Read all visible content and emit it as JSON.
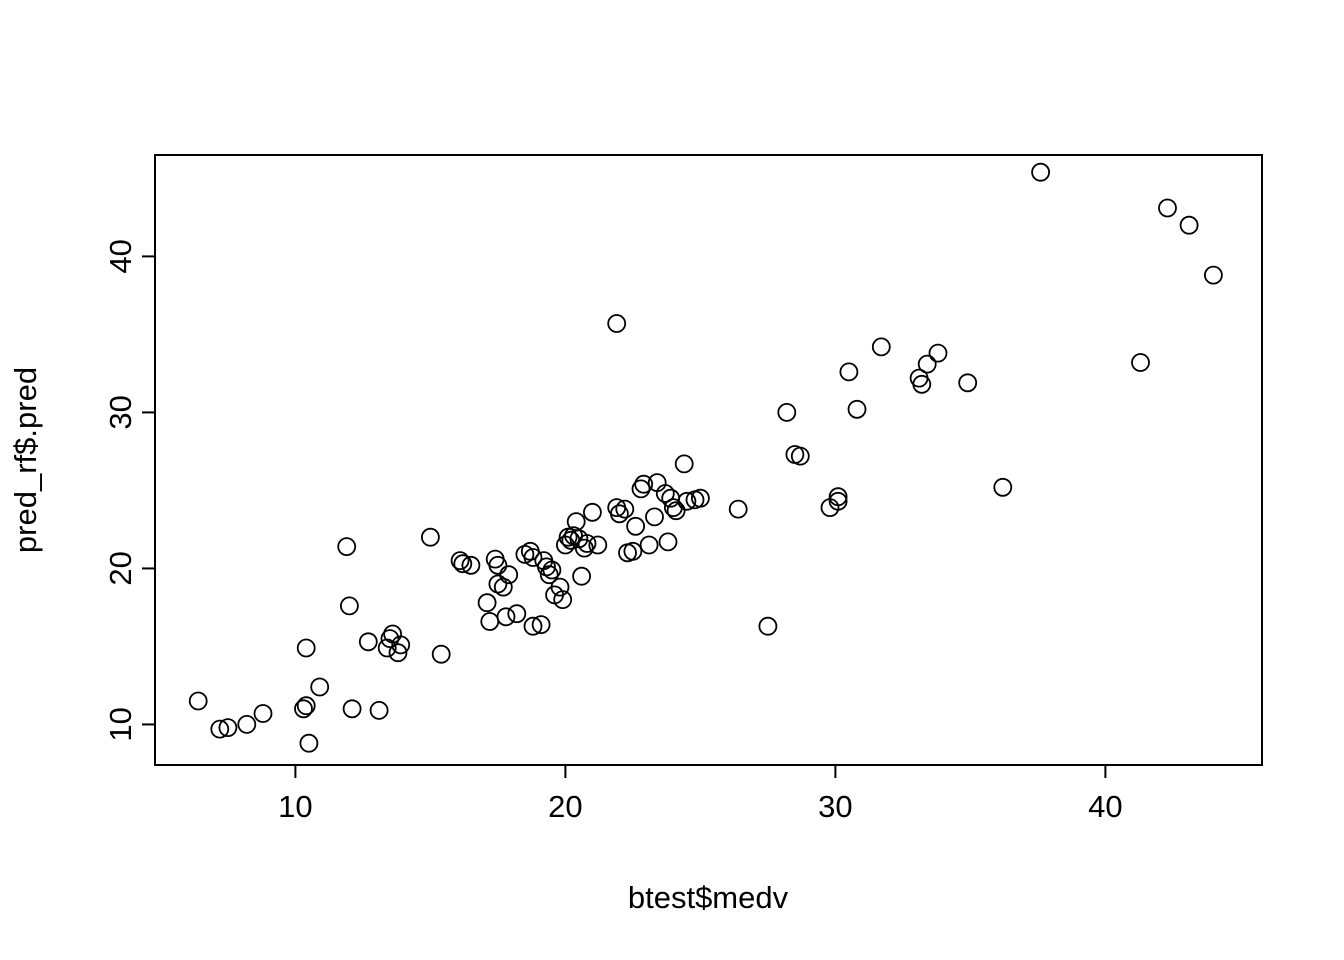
{
  "chart_data": {
    "type": "scatter",
    "title": "",
    "xlabel": "btest$medv",
    "ylabel": "pred_rf$.pred",
    "xlim": [
      4.8,
      45.8
    ],
    "ylim": [
      7.4,
      46.5
    ],
    "xticks": [
      10,
      20,
      30,
      40
    ],
    "yticks": [
      10,
      20,
      30,
      40
    ],
    "grid": false,
    "legend": "none",
    "marker": "open-circle",
    "marker_color": "#000000",
    "points": [
      [
        6.4,
        11.5
      ],
      [
        7.2,
        9.7
      ],
      [
        7.5,
        9.8
      ],
      [
        8.2,
        10.0
      ],
      [
        8.8,
        10.7
      ],
      [
        10.3,
        11.0
      ],
      [
        10.4,
        11.2
      ],
      [
        10.4,
        14.9
      ],
      [
        10.5,
        8.8
      ],
      [
        10.9,
        12.4
      ],
      [
        11.9,
        21.4
      ],
      [
        12.0,
        17.6
      ],
      [
        12.1,
        11.0
      ],
      [
        12.7,
        15.3
      ],
      [
        13.1,
        10.9
      ],
      [
        13.4,
        14.9
      ],
      [
        13.5,
        15.5
      ],
      [
        13.6,
        15.8
      ],
      [
        13.8,
        14.6
      ],
      [
        13.9,
        15.1
      ],
      [
        15.0,
        22.0
      ],
      [
        15.4,
        14.5
      ],
      [
        16.1,
        20.5
      ],
      [
        16.2,
        20.3
      ],
      [
        16.5,
        20.2
      ],
      [
        17.1,
        17.8
      ],
      [
        17.2,
        16.6
      ],
      [
        17.4,
        20.6
      ],
      [
        17.5,
        20.2
      ],
      [
        17.5,
        19.0
      ],
      [
        17.7,
        18.8
      ],
      [
        17.8,
        16.9
      ],
      [
        17.9,
        19.6
      ],
      [
        18.2,
        17.1
      ],
      [
        18.5,
        20.9
      ],
      [
        18.7,
        21.1
      ],
      [
        18.8,
        20.7
      ],
      [
        18.8,
        16.3
      ],
      [
        19.1,
        16.4
      ],
      [
        19.2,
        20.5
      ],
      [
        19.3,
        20.1
      ],
      [
        19.4,
        19.6
      ],
      [
        19.5,
        19.9
      ],
      [
        19.6,
        18.3
      ],
      [
        19.8,
        18.8
      ],
      [
        19.9,
        18.0
      ],
      [
        20.0,
        21.5
      ],
      [
        20.1,
        22.0
      ],
      [
        20.2,
        21.8
      ],
      [
        20.3,
        22.1
      ],
      [
        20.4,
        23.0
      ],
      [
        20.5,
        21.9
      ],
      [
        20.6,
        19.5
      ],
      [
        20.7,
        21.3
      ],
      [
        20.8,
        21.6
      ],
      [
        21.0,
        23.6
      ],
      [
        21.2,
        21.5
      ],
      [
        21.9,
        35.7
      ],
      [
        21.9,
        23.9
      ],
      [
        22.0,
        23.5
      ],
      [
        22.2,
        23.8
      ],
      [
        22.3,
        21.0
      ],
      [
        22.5,
        21.1
      ],
      [
        22.6,
        22.7
      ],
      [
        22.8,
        25.1
      ],
      [
        22.9,
        25.4
      ],
      [
        23.1,
        21.5
      ],
      [
        23.3,
        23.3
      ],
      [
        23.4,
        25.5
      ],
      [
        23.7,
        24.8
      ],
      [
        23.8,
        21.7
      ],
      [
        23.9,
        24.5
      ],
      [
        24.0,
        23.9
      ],
      [
        24.1,
        23.7
      ],
      [
        24.4,
        26.7
      ],
      [
        24.5,
        24.3
      ],
      [
        24.8,
        24.4
      ],
      [
        25.0,
        24.5
      ],
      [
        26.4,
        23.8
      ],
      [
        27.5,
        16.3
      ],
      [
        28.2,
        30.0
      ],
      [
        28.5,
        27.3
      ],
      [
        28.7,
        27.2
      ],
      [
        29.8,
        23.9
      ],
      [
        30.1,
        24.3
      ],
      [
        30.1,
        24.6
      ],
      [
        30.5,
        32.6
      ],
      [
        30.8,
        30.2
      ],
      [
        31.7,
        34.2
      ],
      [
        33.1,
        32.2
      ],
      [
        33.2,
        31.8
      ],
      [
        33.4,
        33.1
      ],
      [
        33.8,
        33.8
      ],
      [
        34.9,
        31.9
      ],
      [
        36.2,
        25.2
      ],
      [
        37.6,
        45.4
      ],
      [
        41.3,
        33.2
      ],
      [
        42.3,
        43.1
      ],
      [
        43.1,
        42.0
      ],
      [
        44.0,
        38.8
      ]
    ]
  }
}
